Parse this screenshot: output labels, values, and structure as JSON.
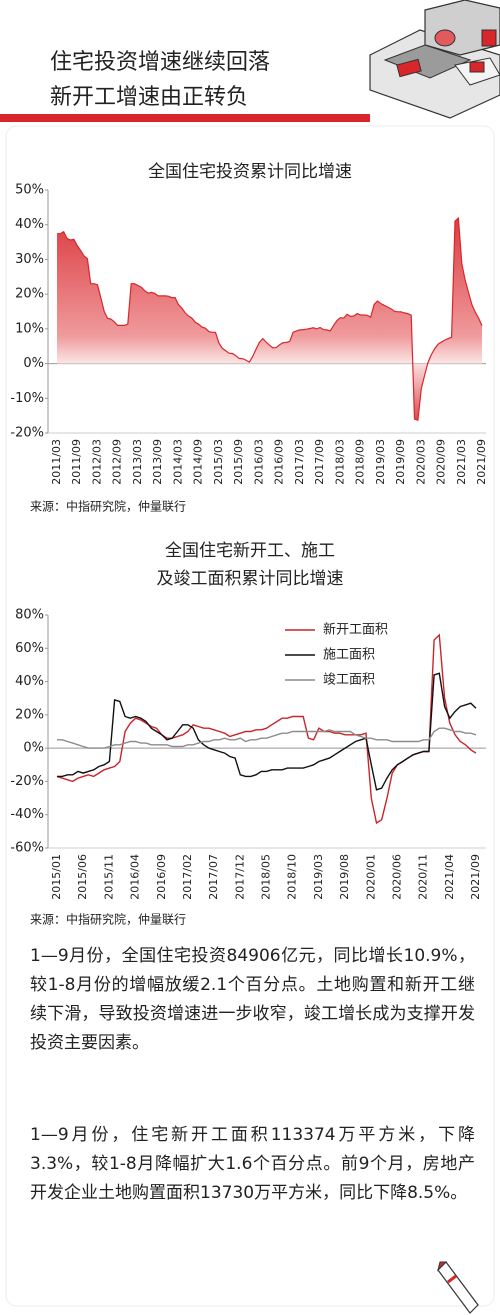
{
  "header": {
    "title": [
      "住宅投资增速继续回落",
      "新开工增速由正转负"
    ]
  },
  "chart_data": [
    {
      "type": "area",
      "title": "全国住宅投资累计同比增速",
      "source": "来源：中指研究院，仲量联行",
      "color": "#d8262b",
      "categories": [
        "2011/03",
        null,
        null,
        null,
        null,
        null,
        "2011/09",
        null,
        null,
        null,
        null,
        null,
        "2012/03",
        null,
        null,
        null,
        null,
        null,
        "2012/09",
        null,
        null,
        null,
        null,
        null,
        "2013/03",
        null,
        null,
        null,
        null,
        null,
        "2013/09",
        null,
        null,
        null,
        null,
        null,
        "2014/03",
        null,
        null,
        null,
        null,
        null,
        "2014/09",
        null,
        null,
        null,
        null,
        null,
        "2015/03",
        null,
        null,
        null,
        null,
        null,
        "2015/09",
        null,
        null,
        null,
        null,
        null,
        "2016/03",
        null,
        null,
        null,
        null,
        null,
        "2016/09",
        null,
        null,
        null,
        null,
        null,
        "2017/03",
        null,
        null,
        null,
        null,
        null,
        "2017/09",
        null,
        null,
        null,
        null,
        null,
        "2018/03",
        null,
        null,
        null,
        null,
        null,
        "2018/09",
        null,
        null,
        null,
        null,
        null,
        "2019/03",
        null,
        null,
        null,
        null,
        null,
        "2019/09",
        null,
        null,
        null,
        null,
        null,
        "2020/03",
        null,
        null,
        null,
        null,
        null,
        "2020/09",
        null,
        null,
        null,
        null,
        null,
        "2021/03",
        null,
        null,
        null,
        null,
        null,
        "2021/09"
      ],
      "values": [
        37.4,
        37.4,
        38.0,
        36.0,
        35.6,
        35.8,
        34.0,
        32.6,
        31.0,
        30.2,
        23,
        23,
        22.7,
        19,
        15,
        13,
        12.8,
        12,
        11,
        11,
        11,
        11.4,
        23,
        23,
        22.5,
        22,
        21,
        20.3,
        20.5,
        20.2,
        19.5,
        19.5,
        19.5,
        19.4,
        19,
        19,
        17,
        16,
        14.6,
        13.7,
        13.1,
        11.9,
        11.3,
        10.5,
        10.2,
        9.2,
        9,
        9,
        5.9,
        4.4,
        3.7,
        3.0,
        2.9,
        2.3,
        1.5,
        1.4,
        1.0,
        0.4,
        2,
        4.1,
        6.1,
        7.2,
        6.2,
        5.3,
        4.5,
        4.6,
        5.4,
        6.0,
        6.1,
        6.4,
        9,
        9.4,
        9.7,
        9.8,
        9.9,
        10.1,
        10.3,
        10.0,
        10.4,
        9.8,
        9.7,
        9.4,
        11,
        12.4,
        13.2,
        13.1,
        14.2,
        13.6,
        13.7,
        14.4,
        14.0,
        14.0,
        13.9,
        13.4,
        17,
        18.0,
        17.3,
        16.8,
        16.3,
        15.8,
        15.1,
        14.9,
        14.9,
        14.6,
        14.4,
        13.9,
        -16,
        -16.3,
        -7.2,
        -3.3,
        0.3,
        2.6,
        4.3,
        5.6,
        6.2,
        6.8,
        7.2,
        7.6,
        41,
        41.9,
        28.8,
        24.1,
        20.5,
        17.0,
        14.8,
        13.1,
        10.9
      ],
      "ylim": [
        -20,
        50
      ],
      "yticks": [
        {
          "value": 50,
          "label": "50%"
        },
        {
          "value": 40,
          "label": "40%"
        },
        {
          "value": 30,
          "label": "30%"
        },
        {
          "value": 20,
          "label": "20%"
        },
        {
          "value": 10,
          "label": "10%"
        },
        {
          "value": 0,
          "label": "0%"
        },
        {
          "value": -10,
          "label": "-10%"
        },
        {
          "value": -20,
          "label": "-20%"
        }
      ],
      "grid": false
    },
    {
      "type": "line",
      "title": [
        "全国住宅新开工、施工",
        "及竣工面积累计同比增速"
      ],
      "source": "来源：中指研究院，仲量联行",
      "legend": "upper right",
      "categories": [
        "2015/01",
        null,
        null,
        null,
        null,
        "2015/06",
        null,
        null,
        null,
        null,
        "2015/11",
        null,
        null,
        null,
        null,
        "2016/04",
        null,
        null,
        null,
        null,
        "2016/09",
        null,
        null,
        null,
        null,
        "2017/02",
        null,
        null,
        null,
        null,
        "2017/07",
        null,
        null,
        null,
        null,
        "2017/12",
        null,
        null,
        null,
        null,
        "2018/05",
        null,
        null,
        null,
        null,
        "2018/10",
        null,
        null,
        null,
        null,
        "2019/03",
        null,
        null,
        null,
        null,
        "2019/08",
        null,
        null,
        null,
        null,
        "2020/01",
        null,
        null,
        null,
        null,
        "2020/06",
        null,
        null,
        null,
        null,
        "2020/11",
        null,
        null,
        null,
        null,
        "2021/04",
        null,
        null,
        null,
        null,
        "2021/09"
      ],
      "series": [
        {
          "name": "新开工面积",
          "color": "#c9252b",
          "values": [
            -17,
            -18,
            -19,
            -20,
            -18,
            -17,
            -16,
            -17,
            -15,
            -13,
            -12,
            -11,
            -8,
            10,
            15,
            18,
            17,
            15,
            13,
            12,
            8,
            6,
            6,
            7,
            8,
            10,
            14,
            13,
            12,
            12,
            11,
            10,
            9,
            7,
            8,
            9,
            10,
            10,
            11,
            11,
            12,
            14,
            16,
            18,
            18,
            19,
            19,
            19,
            6,
            5,
            12,
            10,
            10,
            9,
            9,
            8,
            8,
            8,
            8,
            9,
            -30,
            -45,
            -43,
            -30,
            -15,
            -10,
            -8,
            -6,
            -4,
            -3,
            -2,
            -2,
            65,
            68,
            30,
            15,
            8,
            4,
            2,
            -1,
            -3
          ]
        },
        {
          "name": "施工面积",
          "color": "#111111",
          "values": [
            -17,
            -17,
            -16,
            -16,
            -14,
            -15,
            -14,
            -13,
            -11,
            -10,
            -8,
            29,
            28,
            19,
            18,
            19,
            18,
            16,
            12,
            10,
            8,
            5,
            6,
            10,
            14,
            14,
            12,
            5,
            2,
            0,
            -1,
            -2,
            -3,
            -5,
            -6,
            -16,
            -17,
            -17,
            -16,
            -14,
            -14,
            -13,
            -13,
            -13,
            -12,
            -12,
            -12,
            -12,
            -11,
            -10,
            -8,
            -7,
            -6,
            -4,
            -2,
            0,
            2,
            4,
            5,
            6,
            -10,
            -25,
            -24,
            -18,
            -13,
            -10,
            -8,
            -6,
            -4,
            -3,
            -2,
            -2,
            44,
            45,
            25,
            18,
            22,
            25,
            26,
            27,
            24
          ]
        },
        {
          "name": "竣工面积",
          "color": "#8c8c8c",
          "values": [
            5,
            5,
            4,
            3,
            2,
            1,
            0,
            0,
            0,
            0,
            1,
            2,
            2,
            3,
            4,
            4,
            3,
            3,
            2,
            2,
            2,
            2,
            1,
            1,
            1,
            2,
            2,
            3,
            4,
            4,
            5,
            5,
            6,
            5,
            5,
            6,
            4,
            5,
            5,
            6,
            6,
            7,
            8,
            9,
            9,
            10,
            10,
            10,
            10,
            10,
            10,
            10,
            11,
            10,
            10,
            10,
            10,
            8,
            7,
            6,
            6,
            5,
            5,
            5,
            4,
            4,
            4,
            4,
            4,
            4,
            5,
            5,
            10,
            12,
            12,
            11,
            10,
            10,
            9,
            9,
            8
          ]
        }
      ],
      "ylim": [
        -60,
        80
      ],
      "yticks": [
        {
          "value": 80,
          "label": "80%"
        },
        {
          "value": 60,
          "label": "60%"
        },
        {
          "value": 40,
          "label": "40%"
        },
        {
          "value": 20,
          "label": "20%"
        },
        {
          "value": 0,
          "label": "0%"
        },
        {
          "value": -20,
          "label": "-20%"
        },
        {
          "value": -40,
          "label": "-40%"
        },
        {
          "value": -60,
          "label": "-60%"
        }
      ],
      "grid": false
    }
  ],
  "paragraphs": [
    "1—9月份，全国住宅投资84906亿元，同比增长10.9%，较1-8月份的增幅放缓2.1个百分点。土地购置和新开工继续下滑，导致投资增速进一步收窄，竣工增长成为支撑开发投资主要因素。",
    "1—9月份，住宅新开工面积113374万平方米，下降3.3%，较1-8月降幅扩大1.6个百分点。前9个月，房地产开发企业土地购置面积13730万平方米，同比下降8.5%。"
  ]
}
